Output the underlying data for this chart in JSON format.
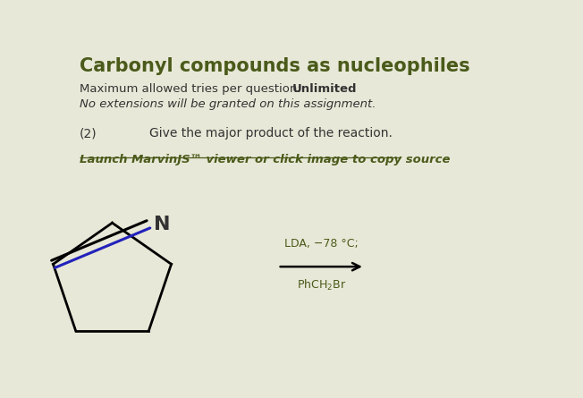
{
  "background_color": "#e8e8d8",
  "title": "Carbonyl compounds as nucleophiles",
  "title_color": "#4a5a1a",
  "title_fontsize": 15,
  "line1": "Maximum allowed tries per question: ",
  "line1_bold": "Unlimited",
  "line2": "No extensions will be granted on this assignment.",
  "question_label": "(2)",
  "question_text": "Give the major product of the reaction.",
  "marvin_link": "Launch MarvinJS™ viewer or click image to copy source",
  "marvin_color": "#4a5a1a",
  "box_bg": "#ffffff",
  "text_color": "#333333",
  "reagent_line1": "LDA, −78 °C;",
  "reagent_line2": "PhCH₂Br",
  "reagent_color": "#4a5a1a"
}
